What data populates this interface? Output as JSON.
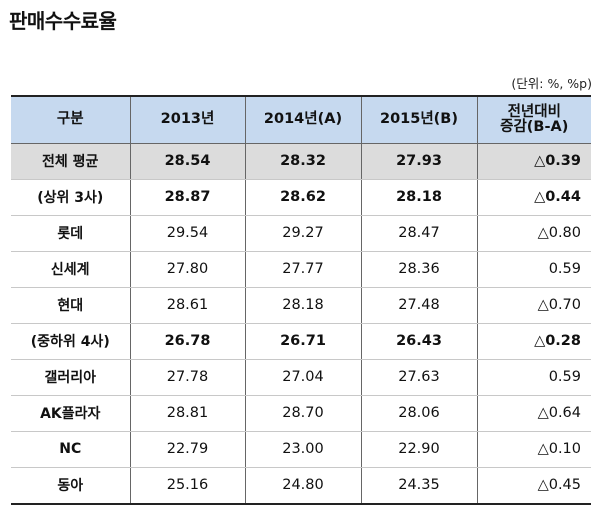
{
  "title": "판매수수료율",
  "unit_note": "(단위: %, %p)",
  "table": {
    "headers": [
      "구분",
      "2013년",
      "2014년(A)",
      "2015년(B)",
      "전년대비\n증감(B-A)"
    ],
    "rows": [
      {
        "label": "전체 평균",
        "v2013": "28.54",
        "v2014": "28.32",
        "v2015": "27.93",
        "diff": "△0.39",
        "style": "avg"
      },
      {
        "label": "(상위 3사)",
        "v2013": "28.87",
        "v2014": "28.62",
        "v2015": "28.18",
        "diff": "△0.44",
        "style": "group"
      },
      {
        "label": "롯데",
        "v2013": "29.54",
        "v2014": "29.27",
        "v2015": "28.47",
        "diff": "△0.80",
        "style": "normal"
      },
      {
        "label": "신세계",
        "v2013": "27.80",
        "v2014": "27.77",
        "v2015": "28.36",
        "diff": "0.59",
        "style": "normal"
      },
      {
        "label": "현대",
        "v2013": "28.61",
        "v2014": "28.18",
        "v2015": "27.48",
        "diff": "△0.70",
        "style": "normal"
      },
      {
        "label": "(중하위 4사)",
        "v2013": "26.78",
        "v2014": "26.71",
        "v2015": "26.43",
        "diff": "△0.28",
        "style": "group"
      },
      {
        "label": "갤러리아",
        "v2013": "27.78",
        "v2014": "27.04",
        "v2015": "27.63",
        "diff": "0.59",
        "style": "normal"
      },
      {
        "label": "AK플라자",
        "v2013": "28.81",
        "v2014": "28.70",
        "v2015": "28.06",
        "diff": "△0.64",
        "style": "normal"
      },
      {
        "label": "NC",
        "v2013": "22.79",
        "v2014": "23.00",
        "v2015": "22.90",
        "diff": "△0.10",
        "style": "normal"
      },
      {
        "label": "동아",
        "v2013": "25.16",
        "v2014": "24.80",
        "v2015": "24.35",
        "diff": "△0.45",
        "style": "normal"
      }
    ]
  }
}
